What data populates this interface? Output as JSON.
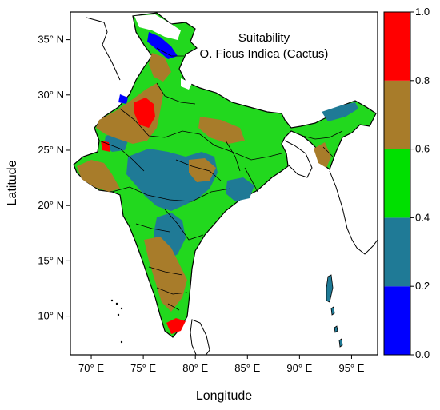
{
  "title": {
    "line1": "Suitability",
    "line2": "O. Ficus Indica (Cactus)"
  },
  "axes": {
    "xlabel": "Longitude",
    "ylabel": "Latitude",
    "xticks": [
      "70° E",
      "75° E",
      "80° E",
      "85° E",
      "90° E",
      "95° E"
    ],
    "yticks": [
      "10° N",
      "15° N",
      "20° N",
      "25° N",
      "30° N",
      "35° N"
    ],
    "xlim": [
      68,
      97.5
    ],
    "ylim": [
      6.5,
      37.5
    ]
  },
  "colorbar": {
    "ticks": [
      "0.0",
      "0.2",
      "0.4",
      "0.6",
      "0.8",
      "1.0"
    ],
    "bins": [
      {
        "range": [
          0.0,
          0.2
        ],
        "color": "#0000ff"
      },
      {
        "range": [
          0.2,
          0.4
        ],
        "color": "#1f7a96"
      },
      {
        "range": [
          0.4,
          0.6
        ],
        "color": "#00e000"
      },
      {
        "range": [
          0.6,
          0.8
        ],
        "color": "#a87c2a"
      },
      {
        "range": [
          0.8,
          1.0
        ],
        "color": "#ff0000"
      }
    ]
  },
  "legend_colors": {
    "very_low": "#0000ff",
    "low": "#1f7a96",
    "medium": "#00e000",
    "high": "#a87c2a",
    "very_high": "#ff0000"
  }
}
